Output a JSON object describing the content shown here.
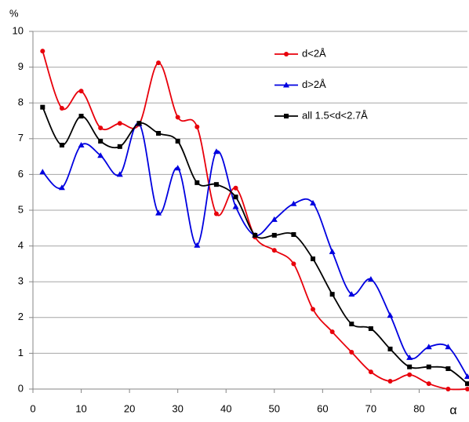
{
  "chart_data": {
    "type": "line",
    "y_label": "%",
    "x_label": "α",
    "x": [
      2,
      6,
      10,
      14,
      18,
      22,
      26,
      30,
      34,
      38,
      42,
      46,
      50,
      54,
      58,
      62,
      66,
      70,
      74,
      78,
      82,
      86,
      90
    ],
    "series": [
      {
        "name": "d<2Å",
        "color": "#e8000b",
        "marker": "circle",
        "values": [
          9.45,
          7.85,
          8.33,
          7.3,
          7.43,
          7.4,
          9.12,
          7.6,
          7.33,
          4.9,
          5.62,
          4.25,
          3.88,
          3.5,
          2.23,
          1.6,
          1.03,
          0.48,
          0.22,
          0.4,
          0.15,
          0,
          0
        ]
      },
      {
        "name": "d>2Å",
        "color": "#0000e0",
        "marker": "triangle",
        "values": [
          6.07,
          5.63,
          6.82,
          6.53,
          6.0,
          7.42,
          4.92,
          6.18,
          4.02,
          6.64,
          5.1,
          4.3,
          4.74,
          5.18,
          5.2,
          3.84,
          2.65,
          3.07,
          2.06,
          0.88,
          1.18,
          1.18,
          0.35
        ]
      },
      {
        "name": "all 1.5<d<2.7Å",
        "color": "#000000",
        "marker": "square",
        "values": [
          7.88,
          6.82,
          7.63,
          6.93,
          6.78,
          7.43,
          7.15,
          6.93,
          5.77,
          5.72,
          5.37,
          4.3,
          4.3,
          4.32,
          3.64,
          2.65,
          1.82,
          1.69,
          1.12,
          0.62,
          0.62,
          0.57,
          0.15
        ]
      }
    ],
    "xlim": [
      0,
      90
    ],
    "xticks": [
      0,
      10,
      20,
      30,
      40,
      50,
      60,
      70,
      80
    ],
    "ylim": [
      0,
      10
    ],
    "yticks": [
      0,
      1,
      2,
      3,
      4,
      5,
      6,
      7,
      8,
      9,
      10
    ],
    "grid": true
  }
}
